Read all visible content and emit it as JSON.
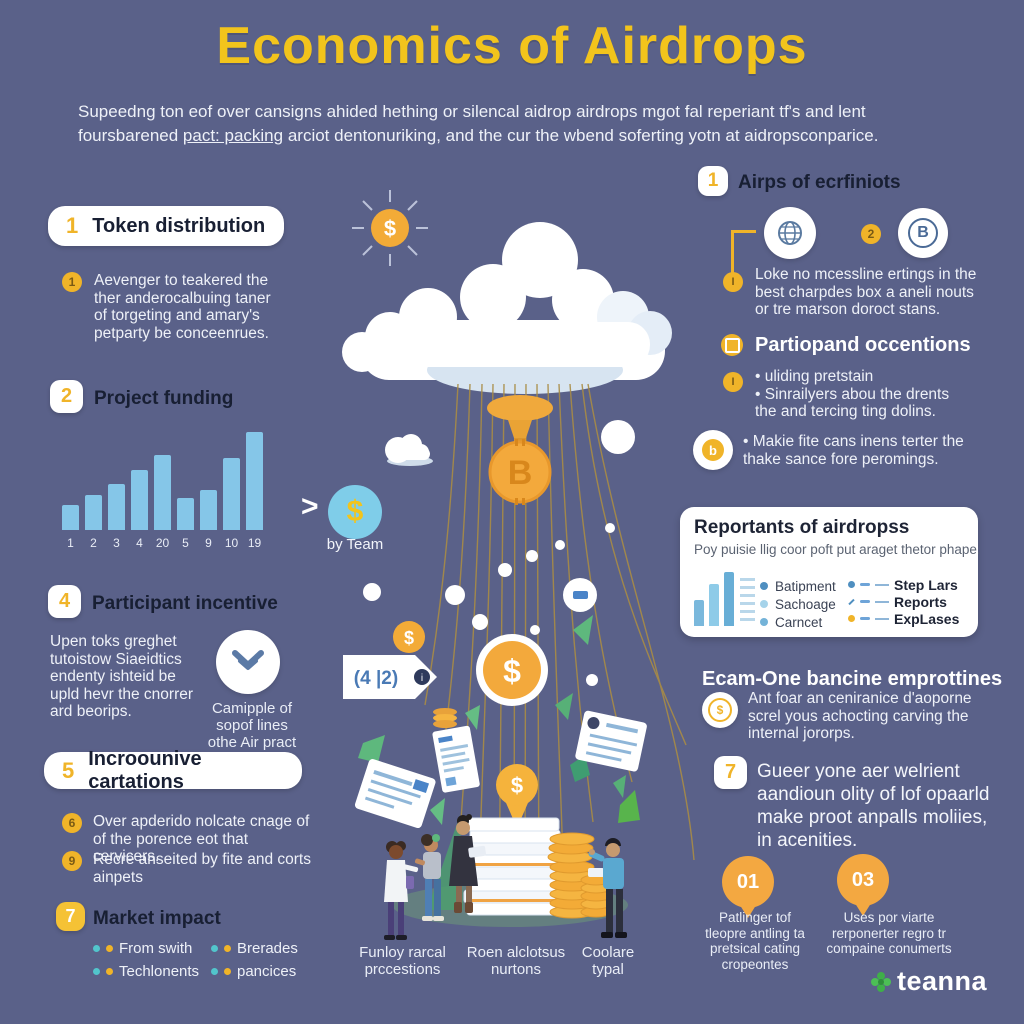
{
  "header": {
    "title": "Economics of Airdrops",
    "subtitle_line1": "Supeedng ton eof over cansigns ahided hething or silencal aidrop airdrops mgot fal reperiant tf's and lent foursbarened",
    "subtitle_underlined": "pact: packing",
    "subtitle_line2_rest": " arciot dentonuriking, and the cur the wbend soferting yotn at aidropsconparice."
  },
  "left": {
    "section1": {
      "num": "1",
      "title": "Token distribution"
    },
    "bullet1": {
      "num": "1",
      "text": "Aevenger to teakered the\nther anderocalbuing taner\nof torgeting and amary's\npetparty be conceenrues."
    },
    "section2": {
      "num": "2",
      "title": "Project funding"
    },
    "byteam": {
      "chevron": ">",
      "symbol": "$",
      "label": "by Team"
    },
    "section4": {
      "num": "4",
      "title": "Participant incentive"
    },
    "bullet4_text": "Upen toks greghet\ntutoistow Siaeidtics\nendenty ishteid be\nupld hevr the cnorrer\nard beorips.",
    "heart_caption": "Camipple of\nsopof lines\nothe Air pract",
    "section5": {
      "num": "5",
      "title": "Incroounive cartations"
    },
    "bullet6": {
      "num": "6",
      "text": "Over apderido nolcate cnage of\nof the porence eot that cervicers."
    },
    "bullet9": {
      "num": "9",
      "text": "Recre anseited by fite and corts\nainpets"
    },
    "section7": {
      "num": "7",
      "title": "Market impact",
      "bullets": [
        "From swith",
        "Brerades",
        "Techlonents",
        "pancices"
      ]
    }
  },
  "right": {
    "section1": {
      "num": "1",
      "title": "Airps of ecrfiniots"
    },
    "icon2_num": "2",
    "bcoin_letter": "B",
    "bullet1_text": "Loke no mcessline ertings in the\nbest charpdes box a aneli nouts\nor tre marson doroct stans.",
    "section2_title": "Partiopand occentions",
    "bullet2_text": "• uliding pretstain\n• Sinrailyers abou the drents\nthe and tercing ting dolins.",
    "coin_b": "b",
    "bullet3_text": "• Makie fite cans inens terter the\nthake sance fore peromings.",
    "card": {
      "title": "Reportants of airdropss",
      "subtitle": "Poy puisie llig coor poft put araget thetor phape.",
      "legend_left": [
        "Batipment",
        "Sachoage",
        "Carncet"
      ],
      "legend_right": [
        "Step Lars",
        "Reports",
        "ExpLases"
      ]
    },
    "ecam": {
      "coin": "$",
      "title": "Ecam-One bancine emprottines",
      "text": "Ant foar an ceniranice d'aoporne\nscrel yous achocting carving the\ninternal jororps."
    },
    "section7": {
      "num": "7",
      "text": "Gueer yone aer welrient\naandioun olity of lof opaarld\nmake proot anpalls moliies,\nin acenities."
    },
    "pin1": {
      "num": "01",
      "text": "Patlinger tof\ntleopre antling ta\npretsical cating\ncropeontes"
    },
    "pin2": {
      "num": "03",
      "text": "Uses por viarte\nrerponerter regro tr\ncompaine conumerts"
    },
    "logo": "teanna"
  },
  "center": {
    "sun_symbol": "$",
    "bitcoin_symbol": "B",
    "small_coin_symbol": "$",
    "big_coin_symbol": "$",
    "pin_symbol": "$",
    "tag_label": "(4 |2)",
    "tag_info": "i",
    "labels": [
      "Funloy rarcal\nprccestions",
      "Roen alclotsus\nnurtons",
      "Coolare\ntypal"
    ]
  },
  "chart_data": [
    {
      "type": "bar",
      "title": "Project funding",
      "categories": [
        "1",
        "2",
        "3",
        "4",
        "20",
        "5",
        "9",
        "10",
        "19"
      ],
      "values": [
        25,
        35,
        46,
        60,
        75,
        32,
        40,
        72,
        98
      ],
      "ylim": [
        0,
        100
      ],
      "bar_color": "#85c6e8",
      "grid": false,
      "xlabel": "",
      "ylabel": ""
    },
    {
      "type": "bar",
      "title": "Reportants of airdropss",
      "categories": [
        "",
        "",
        ""
      ],
      "values": [
        26,
        42,
        54
      ],
      "ylim": [
        0,
        60
      ],
      "bar_colors": [
        "#7ab8dc",
        "#8ecbe8",
        "#68aed6"
      ],
      "legend_left": [
        "Batipment",
        "Sachoage",
        "Carncet"
      ],
      "legend_right": [
        "Step Lars",
        "Reports",
        "ExpLases"
      ]
    }
  ],
  "colors": {
    "background": "#5a6189",
    "title_gold": "#f2c41c",
    "badge_gold": "#f0b429",
    "bar_blue": "#85c6e8",
    "coin_orange": "#f3a93c",
    "green_confetti": "#5eb87d",
    "teal_dot": "#52c5cc",
    "logo_green": "#3fae49"
  }
}
